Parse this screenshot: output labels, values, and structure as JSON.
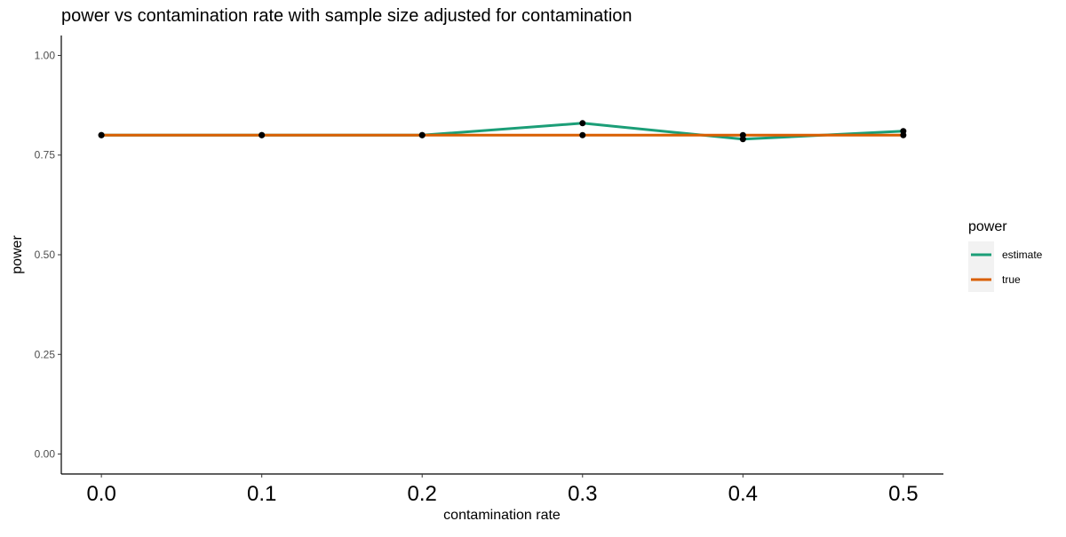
{
  "chart_data": {
    "type": "line",
    "title": "power vs contamination rate with sample size adjusted for contamination",
    "xlabel": "contamination rate",
    "ylabel": "power",
    "x": [
      0.0,
      0.1,
      0.2,
      0.3,
      0.4,
      0.5
    ],
    "x_tick_labels": [
      "0.0",
      "0.1",
      "0.2",
      "0.3",
      "0.4",
      "0.5"
    ],
    "y_ticks": [
      0,
      0.25,
      0.5,
      0.75,
      1.0
    ],
    "y_tick_labels": [
      "0.00",
      "0.25",
      "0.50",
      "0.75",
      "1.00"
    ],
    "xlim": [
      -0.025,
      0.525
    ],
    "ylim": [
      -0.05,
      1.05
    ],
    "grid": false,
    "legend": {
      "title": "power",
      "position": "right"
    },
    "series": [
      {
        "name": "estimate",
        "color": "#1B9E77",
        "values": [
          0.8,
          0.8,
          0.8,
          0.83,
          0.79,
          0.81
        ]
      },
      {
        "name": "true",
        "color": "#D95F02",
        "values": [
          0.8,
          0.8,
          0.8,
          0.8,
          0.8,
          0.8
        ]
      }
    ],
    "point_color": "#000000"
  }
}
